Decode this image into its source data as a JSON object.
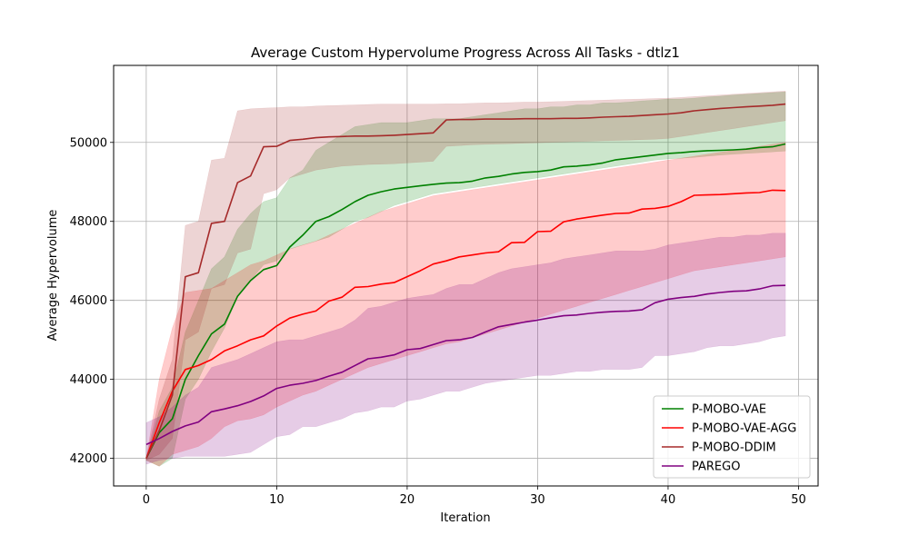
{
  "chart_data": {
    "type": "line",
    "title": "Average Custom Hypervolume Progress Across All Tasks - dtlz1",
    "xlabel": "Iteration",
    "ylabel": "Average Hypervolume",
    "xlim": [
      -2.5,
      51.5
    ],
    "ylim": [
      41300,
      51950
    ],
    "xticks": [
      0,
      10,
      20,
      30,
      40,
      50
    ],
    "yticks": [
      42000,
      44000,
      46000,
      48000,
      50000
    ],
    "grid": true,
    "legend_position": "lower-right",
    "band_opacity": 0.2,
    "x": [
      0,
      1,
      2,
      3,
      4,
      5,
      6,
      7,
      8,
      9,
      10,
      11,
      12,
      13,
      14,
      15,
      16,
      17,
      18,
      19,
      20,
      21,
      22,
      23,
      24,
      25,
      26,
      27,
      28,
      29,
      30,
      31,
      32,
      33,
      34,
      35,
      36,
      37,
      38,
      39,
      40,
      41,
      42,
      43,
      44,
      45,
      46,
      47,
      48,
      49
    ],
    "series": [
      {
        "name": "P-MOBO-VAE",
        "color": "#008000",
        "mean": [
          42000,
          42650,
          43000,
          44000,
          44600,
          45150,
          45400,
          46100,
          46500,
          46780,
          46880,
          47350,
          47650,
          48000,
          48120,
          48300,
          48500,
          48660,
          48750,
          48820,
          48860,
          48900,
          48940,
          48970,
          48980,
          49020,
          49100,
          49140,
          49200,
          49240,
          49260,
          49300,
          49380,
          49400,
          49430,
          49480,
          49560,
          49600,
          49640,
          49680,
          49720,
          49740,
          49770,
          49790,
          49800,
          49810,
          49830,
          49870,
          49890,
          49960
        ],
        "lower": [
          41950,
          41800,
          42000,
          43500,
          44000,
          44700,
          45300,
          46100,
          46500,
          46900,
          47000,
          47300,
          47400,
          47500,
          47600,
          47800,
          48000,
          48100,
          48250,
          48400,
          48500,
          48600,
          48700,
          48750,
          48800,
          48850,
          48900,
          48950,
          49000,
          49050,
          49100,
          49150,
          49200,
          49250,
          49300,
          49350,
          49400,
          49450,
          49500,
          49550,
          49580,
          49600,
          49620,
          49650,
          49680,
          49700,
          49720,
          49740,
          49760,
          49780
        ],
        "upper": [
          42000,
          43200,
          43800,
          45200,
          46000,
          46800,
          47100,
          47800,
          48200,
          48500,
          48600,
          49100,
          49300,
          49800,
          50000,
          50200,
          50400,
          50450,
          50500,
          50500,
          50500,
          50550,
          50600,
          50600,
          50600,
          50650,
          50700,
          50750,
          50800,
          50850,
          50850,
          50900,
          50900,
          50950,
          50950,
          51000,
          51000,
          51020,
          51050,
          51070,
          51100,
          51100,
          51120,
          51150,
          51170,
          51200,
          51220,
          51240,
          51260,
          51280
        ]
      },
      {
        "name": "P-MOBO-VAE-AGG",
        "color": "#ff0000",
        "mean": [
          42000,
          42900,
          43700,
          44250,
          44350,
          44500,
          44720,
          44850,
          45000,
          45100,
          45350,
          45550,
          45650,
          45730,
          45980,
          46080,
          46330,
          46350,
          46410,
          46450,
          46600,
          46750,
          46920,
          47000,
          47100,
          47150,
          47200,
          47230,
          47460,
          47470,
          47740,
          47750,
          47990,
          48060,
          48110,
          48160,
          48200,
          48210,
          48310,
          48330,
          48380,
          48500,
          48660,
          48670,
          48680,
          48700,
          48720,
          48730,
          48790,
          48780
        ],
        "lower": [
          41950,
          41800,
          42100,
          42200,
          42300,
          42500,
          42800,
          42950,
          43000,
          43100,
          43300,
          43450,
          43600,
          43700,
          43850,
          44000,
          44150,
          44300,
          44400,
          44500,
          44600,
          44700,
          44800,
          44900,
          44950,
          45050,
          45150,
          45250,
          45350,
          45450,
          45550,
          45650,
          45750,
          45850,
          45950,
          46050,
          46150,
          46250,
          46350,
          46450,
          46550,
          46650,
          46750,
          46800,
          46850,
          46900,
          46950,
          47000,
          47050,
          47100
        ],
        "upper": [
          42000,
          44000,
          45300,
          46200,
          46250,
          46300,
          46500,
          46700,
          46900,
          47000,
          47150,
          47300,
          47400,
          47500,
          47650,
          47800,
          47950,
          48100,
          48250,
          48350,
          48450,
          48550,
          48650,
          48700,
          48750,
          48800,
          48850,
          48900,
          48950,
          49000,
          49050,
          49100,
          49150,
          49200,
          49250,
          49300,
          49350,
          49400,
          49450,
          49500,
          49550,
          49600,
          49650,
          49700,
          49750,
          49800,
          49850,
          49900,
          49950,
          50000
        ]
      },
      {
        "name": "P-MOBO-DDIM",
        "color": "#a52a2a",
        "mean": [
          42000,
          42700,
          43600,
          46600,
          46700,
          47950,
          48000,
          48980,
          49150,
          49890,
          49900,
          50050,
          50080,
          50120,
          50140,
          50150,
          50160,
          50160,
          50170,
          50180,
          50200,
          50220,
          50240,
          50570,
          50580,
          50580,
          50590,
          50590,
          50590,
          50600,
          50600,
          50600,
          50610,
          50610,
          50620,
          50640,
          50650,
          50660,
          50680,
          50700,
          50720,
          50750,
          50800,
          50830,
          50860,
          50880,
          50900,
          50920,
          50940,
          50970
        ],
        "lower": [
          41950,
          42100,
          42500,
          45000,
          45200,
          46300,
          46400,
          47200,
          47300,
          48700,
          48800,
          49100,
          49200,
          49300,
          49350,
          49400,
          49420,
          49440,
          49450,
          49460,
          49480,
          49500,
          49520,
          49900,
          49920,
          49940,
          49950,
          49960,
          49970,
          49980,
          49990,
          50000,
          50010,
          50020,
          50030,
          50040,
          50050,
          50060,
          50070,
          50080,
          50100,
          50150,
          50200,
          50250,
          50300,
          50350,
          50400,
          50450,
          50500,
          50550
        ],
        "upper": [
          42000,
          43500,
          44500,
          47900,
          48000,
          49550,
          49600,
          50800,
          50850,
          50870,
          50880,
          50900,
          50900,
          50920,
          50930,
          50940,
          50950,
          50960,
          50970,
          50970,
          50970,
          50970,
          50970,
          50980,
          50980,
          50990,
          51000,
          51000,
          51010,
          51020,
          51020,
          51030,
          51040,
          51050,
          51060,
          51070,
          51080,
          51090,
          51100,
          51110,
          51120,
          51140,
          51160,
          51180,
          51200,
          51220,
          51240,
          51260,
          51280,
          51300
        ]
      },
      {
        "name": "PAREGO",
        "color": "#800080",
        "mean": [
          42350,
          42500,
          42680,
          42820,
          42920,
          43180,
          43250,
          43330,
          43440,
          43580,
          43770,
          43850,
          43900,
          43970,
          44080,
          44180,
          44350,
          44520,
          44560,
          44620,
          44750,
          44780,
          44880,
          44980,
          45000,
          45060,
          45200,
          45330,
          45390,
          45450,
          45500,
          45560,
          45610,
          45630,
          45670,
          45700,
          45720,
          45730,
          45760,
          45940,
          46030,
          46070,
          46100,
          46160,
          46200,
          46230,
          46240,
          46290,
          46370,
          46380
        ],
        "lower": [
          41850,
          41950,
          42000,
          42050,
          42050,
          42050,
          42050,
          42100,
          42150,
          42350,
          42550,
          42600,
          42800,
          42800,
          42900,
          43000,
          43150,
          43200,
          43300,
          43300,
          43450,
          43500,
          43600,
          43700,
          43700,
          43800,
          43900,
          43950,
          44000,
          44050,
          44100,
          44100,
          44150,
          44200,
          44200,
          44250,
          44250,
          44250,
          44300,
          44600,
          44600,
          44650,
          44700,
          44800,
          44850,
          44850,
          44900,
          44950,
          45050,
          45100
        ],
        "upper": [
          42900,
          43050,
          43300,
          43600,
          43800,
          44300,
          44400,
          44500,
          44650,
          44800,
          44950,
          45000,
          45000,
          45100,
          45200,
          45300,
          45500,
          45800,
          45850,
          45950,
          46050,
          46100,
          46150,
          46300,
          46400,
          46400,
          46550,
          46700,
          46800,
          46850,
          46900,
          46950,
          47050,
          47100,
          47150,
          47200,
          47250,
          47250,
          47250,
          47300,
          47400,
          47450,
          47500,
          47550,
          47600,
          47600,
          47650,
          47650,
          47700,
          47700
        ]
      }
    ]
  }
}
